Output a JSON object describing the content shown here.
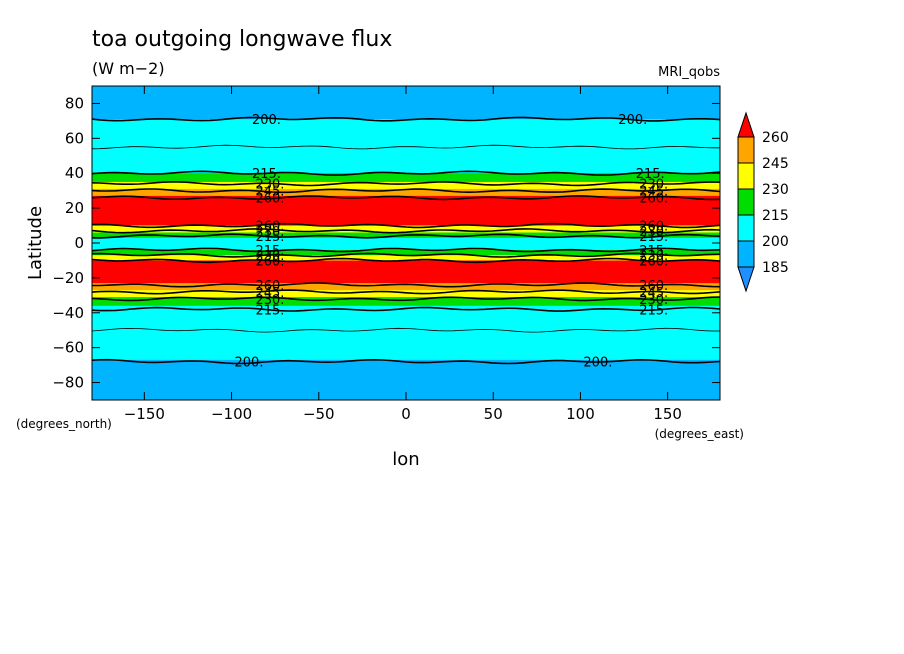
{
  "chart_data": {
    "type": "heatmap",
    "title": "toa outgoing longwave flux",
    "units": "(W m−2)",
    "model_label": "MRI_qobs",
    "xlabel": "lon",
    "ylabel": "Latitude",
    "x_units_label": "(degrees_east)",
    "y_units_label": "(degrees_north)",
    "xlim": [
      -180,
      180
    ],
    "ylim": [
      -90,
      90
    ],
    "x_ticks": [
      -150,
      -100,
      -50,
      0,
      50,
      100,
      150
    ],
    "x_tick_labels": [
      "−150",
      "−100",
      "−50",
      "0",
      "50",
      "100",
      "150"
    ],
    "y_ticks": [
      -80,
      -60,
      -40,
      -20,
      0,
      20,
      40,
      60,
      80
    ],
    "y_tick_labels": [
      "−80",
      "−60",
      "−40",
      "−20",
      "0",
      "20",
      "40",
      "60",
      "80"
    ],
    "colorbar": {
      "levels": [
        185,
        200,
        215,
        230,
        245,
        260
      ],
      "level_labels": [
        "185",
        "200",
        "215",
        "230",
        "245",
        "260"
      ],
      "colors": [
        "#1e90ff",
        "#00b4ff",
        "#00ffff",
        "#00dd00",
        "#ffff00",
        "#ffa500",
        "#ff0000"
      ]
    },
    "zonal_bands": [
      {
        "lat_min": 71,
        "lat_max": 90,
        "value": 190
      },
      {
        "lat_min": 40,
        "lat_max": 71,
        "value": 205
      },
      {
        "lat_min": 35,
        "lat_max": 40,
        "value": 222
      },
      {
        "lat_min": 31,
        "lat_max": 35,
        "value": 237
      },
      {
        "lat_min": 27,
        "lat_max": 31,
        "value": 252
      },
      {
        "lat_min": 10,
        "lat_max": 27,
        "value": 265
      },
      {
        "lat_min": 6,
        "lat_max": 10,
        "value": 237
      },
      {
        "lat_min": 3,
        "lat_max": 6,
        "value": 222
      },
      {
        "lat_min": -4,
        "lat_max": 3,
        "value": 205
      },
      {
        "lat_min": -7,
        "lat_max": -4,
        "value": 222
      },
      {
        "lat_min": -10,
        "lat_max": -7,
        "value": 237
      },
      {
        "lat_min": -23,
        "lat_max": -10,
        "value": 265
      },
      {
        "lat_min": -27,
        "lat_max": -23,
        "value": 252
      },
      {
        "lat_min": -31,
        "lat_max": -27,
        "value": 237
      },
      {
        "lat_min": -36,
        "lat_max": -31,
        "value": 222
      },
      {
        "lat_min": -40,
        "lat_max": -36,
        "value": 208
      },
      {
        "lat_min": -67,
        "lat_max": -40,
        "value": 205
      },
      {
        "lat_min": -90,
        "lat_max": -67,
        "value": 190
      }
    ],
    "contour_lines": [
      {
        "lat": 71,
        "value": 200,
        "label": "200.",
        "label_lons": [
          -80,
          130
        ]
      },
      {
        "lat": 55,
        "value": 207,
        "label": "",
        "label_lons": []
      },
      {
        "lat": 40,
        "value": 215,
        "label": "215.",
        "label_lons": [
          -80,
          140
        ]
      },
      {
        "lat": 34,
        "value": 230,
        "label": "230.",
        "label_lons": [
          -78,
          142
        ]
      },
      {
        "lat": 30,
        "value": 245,
        "label": "245.",
        "label_lons": [
          -78,
          142
        ]
      },
      {
        "lat": 26,
        "value": 260,
        "label": "260.",
        "label_lons": [
          -78,
          142
        ]
      },
      {
        "lat": 10,
        "value": 260,
        "label": "260.",
        "label_lons": [
          -78,
          142
        ]
      },
      {
        "lat": 7,
        "value": 230,
        "label": "230.",
        "label_lons": [
          -78,
          142
        ]
      },
      {
        "lat": 4,
        "value": 215,
        "label": "215.",
        "label_lons": [
          -78,
          142
        ]
      },
      {
        "lat": -4,
        "value": 215,
        "label": "215.",
        "label_lons": [
          -78,
          142
        ]
      },
      {
        "lat": -7,
        "value": 230,
        "label": "230.",
        "label_lons": [
          -78,
          142
        ]
      },
      {
        "lat": -10,
        "value": 260,
        "label": "260.",
        "label_lons": [
          -78,
          142
        ]
      },
      {
        "lat": -24,
        "value": 260,
        "label": "260.",
        "label_lons": [
          -78,
          142
        ]
      },
      {
        "lat": -28,
        "value": 245,
        "label": "245.",
        "label_lons": [
          -78,
          142
        ]
      },
      {
        "lat": -32,
        "value": 230,
        "label": "230.",
        "label_lons": [
          -78,
          142
        ]
      },
      {
        "lat": -38,
        "value": 215,
        "label": "215.",
        "label_lons": [
          -78,
          142
        ]
      },
      {
        "lat": -50,
        "value": 207,
        "label": "",
        "label_lons": []
      },
      {
        "lat": -68,
        "value": 200,
        "label": "200.",
        "label_lons": [
          -90,
          110
        ]
      }
    ]
  }
}
